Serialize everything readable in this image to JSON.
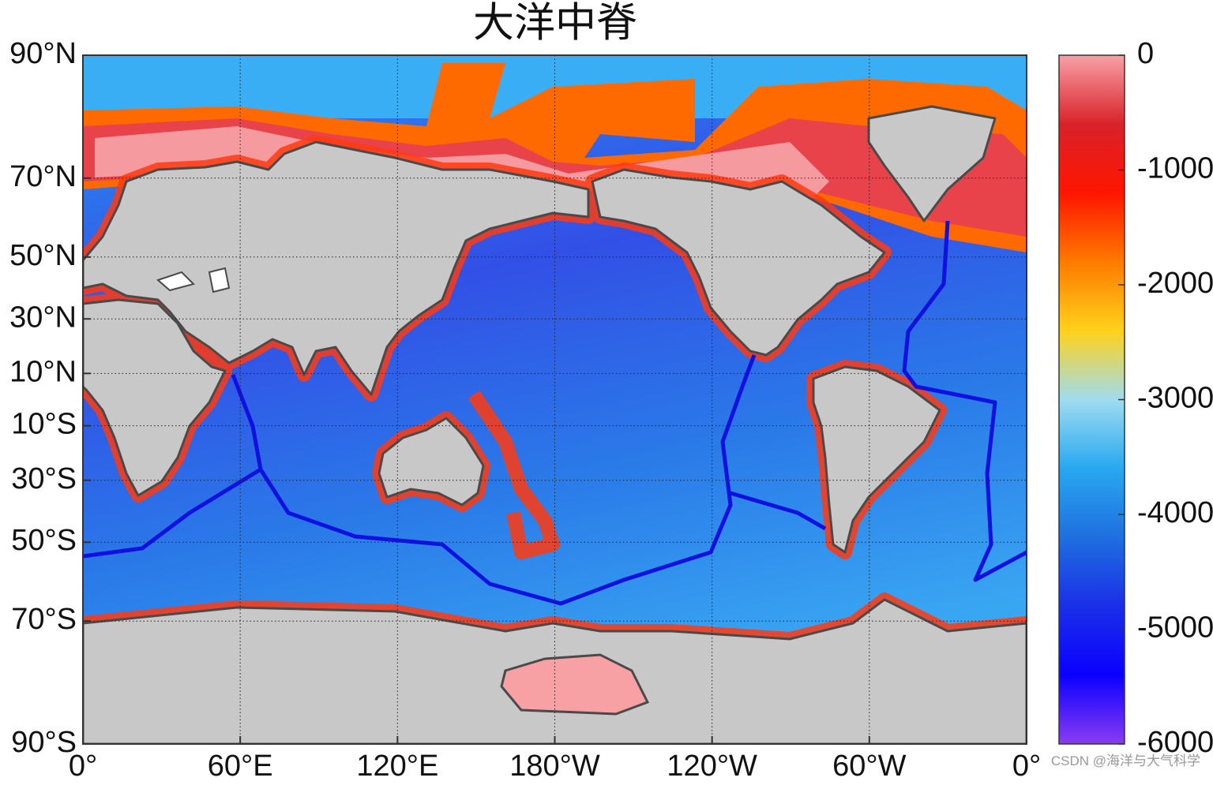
{
  "title": "大洋中脊",
  "map": {
    "lat_ticks": [
      {
        "value": 90,
        "label": "90°N"
      },
      {
        "value": 70,
        "label": "70°N"
      },
      {
        "value": 50,
        "label": "50°N"
      },
      {
        "value": 30,
        "label": "30°N"
      },
      {
        "value": 10,
        "label": "10°N"
      },
      {
        "value": -10,
        "label": "10°S"
      },
      {
        "value": -30,
        "label": "30°S"
      },
      {
        "value": -50,
        "label": "50°S"
      },
      {
        "value": -70,
        "label": "70°S"
      },
      {
        "value": -90,
        "label": "90°S"
      }
    ],
    "lon_ticks": [
      {
        "value": 0,
        "label": "0°"
      },
      {
        "value": 60,
        "label": "60°E"
      },
      {
        "value": 120,
        "label": "120°E"
      },
      {
        "value": 180,
        "label": "180°W"
      },
      {
        "value": 240,
        "label": "120°W"
      },
      {
        "value": 300,
        "label": "60°W"
      },
      {
        "value": 360,
        "label": "0°"
      }
    ],
    "lonlim": [
      0,
      360
    ],
    "latlim": [
      -90,
      90
    ],
    "grid": true
  },
  "colorbar": {
    "lim": [
      -6000,
      0
    ],
    "ticks": [
      0,
      -1000,
      -2000,
      -3000,
      -4000,
      -5000,
      -6000
    ],
    "colors": [
      "#f7a1a5",
      "#d9222a",
      "#ff1500",
      "#ff7a00",
      "#ffd21a",
      "#9fdcf0",
      "#28a8f0",
      "#1f6fe0",
      "#1a2fe8",
      "#0a00ff",
      "#8a3cf0"
    ]
  },
  "watermark": "CSDN @海洋与大气科学"
}
